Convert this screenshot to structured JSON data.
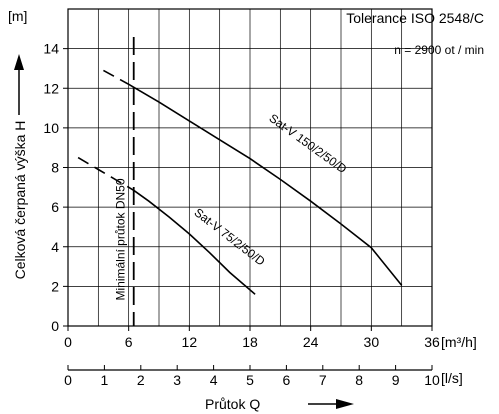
{
  "chart_data": {
    "type": "line",
    "title": "Tolerance ISO 2548/C",
    "subtitle": "n = 2900  ot / min",
    "ylabel": "Celková čerpaná výška H",
    "y_unit": "[m]",
    "xlabel": "Průtok  Q",
    "x_unit_primary": "[m³/h]",
    "x_unit_secondary": "[l/s]",
    "xlim": [
      0,
      36
    ],
    "ylim": [
      0,
      16
    ],
    "x_ticks": [
      "0",
      "6",
      "12",
      "18",
      "24",
      "30",
      "36"
    ],
    "x_ticks_secondary": [
      "0",
      "1",
      "2",
      "3",
      "4",
      "5",
      "6",
      "7",
      "8",
      "9",
      "10"
    ],
    "y_ticks": [
      "0",
      "2",
      "4",
      "6",
      "8",
      "10",
      "12",
      "14"
    ],
    "grid": true,
    "annotations": [
      {
        "text": "Minimální průtok DN50",
        "x": 6.5
      }
    ],
    "series": [
      {
        "name": "Sat-V 150/2/50/D",
        "x": [
          3.5,
          6,
          9,
          12,
          15,
          18,
          21,
          24,
          27,
          30,
          33
        ],
        "y": [
          12.9,
          12.2,
          11.3,
          10.35,
          9.4,
          8.45,
          7.4,
          6.3,
          5.15,
          3.95,
          2.05
        ],
        "dashed_until_x": 6.5
      },
      {
        "name": "Sat-V 75/2/50/D",
        "x": [
          1,
          3,
          5,
          6.5,
          8,
          10,
          12,
          14,
          16,
          18.5
        ],
        "y": [
          8.5,
          7.9,
          7.3,
          6.85,
          6.3,
          5.5,
          4.65,
          3.7,
          2.7,
          1.6
        ],
        "dashed_until_x": 6.5
      }
    ]
  }
}
